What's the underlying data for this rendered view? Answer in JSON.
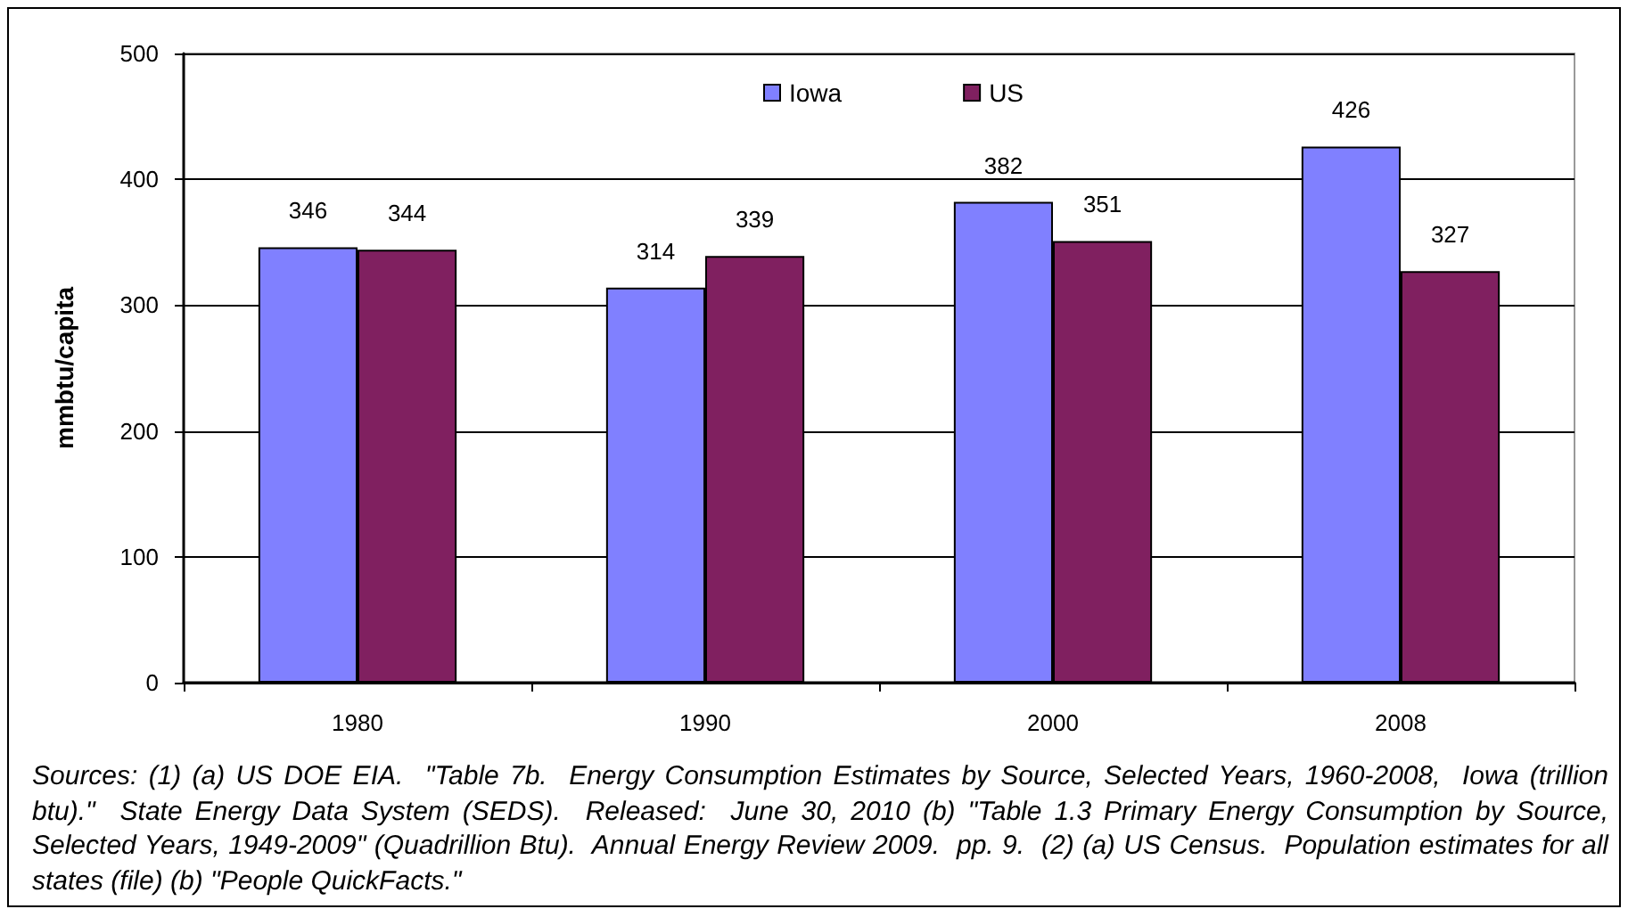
{
  "chart_data": {
    "type": "bar",
    "ylabel": "mmbtu/capita",
    "categories": [
      "1980",
      "1990",
      "2000",
      "2008"
    ],
    "series": [
      {
        "name": "Iowa",
        "color": "#8080ff",
        "values": [
          346,
          314,
          382,
          426
        ]
      },
      {
        "name": "US",
        "color": "#802060",
        "values": [
          344,
          339,
          351,
          327
        ]
      }
    ],
    "ylim": [
      0,
      500
    ],
    "yticks": [
      0,
      100,
      200,
      300,
      400,
      500
    ],
    "grid": "y",
    "legend": "top",
    "data_labels": true,
    "annotations": [
      "Sources: (1) (a) US DOE EIA.  \"Table 7b.  Energy Consumption Estimates by Source, Selected Years, 1960-2008,  Iowa (trillion btu).\"  State Energy Data System (SEDS).  Released:  June 30, 2010 (b) \"Table 1.3 Primary Energy Consumption by Source, Selected Years, 1949-2009\" (Quadrillion Btu).  Annual Energy Review 2009.  pp. 9.  (2) (a) US Census.  Population estimates for all states (file) (b) \"People QuickFacts.\""
    ]
  }
}
